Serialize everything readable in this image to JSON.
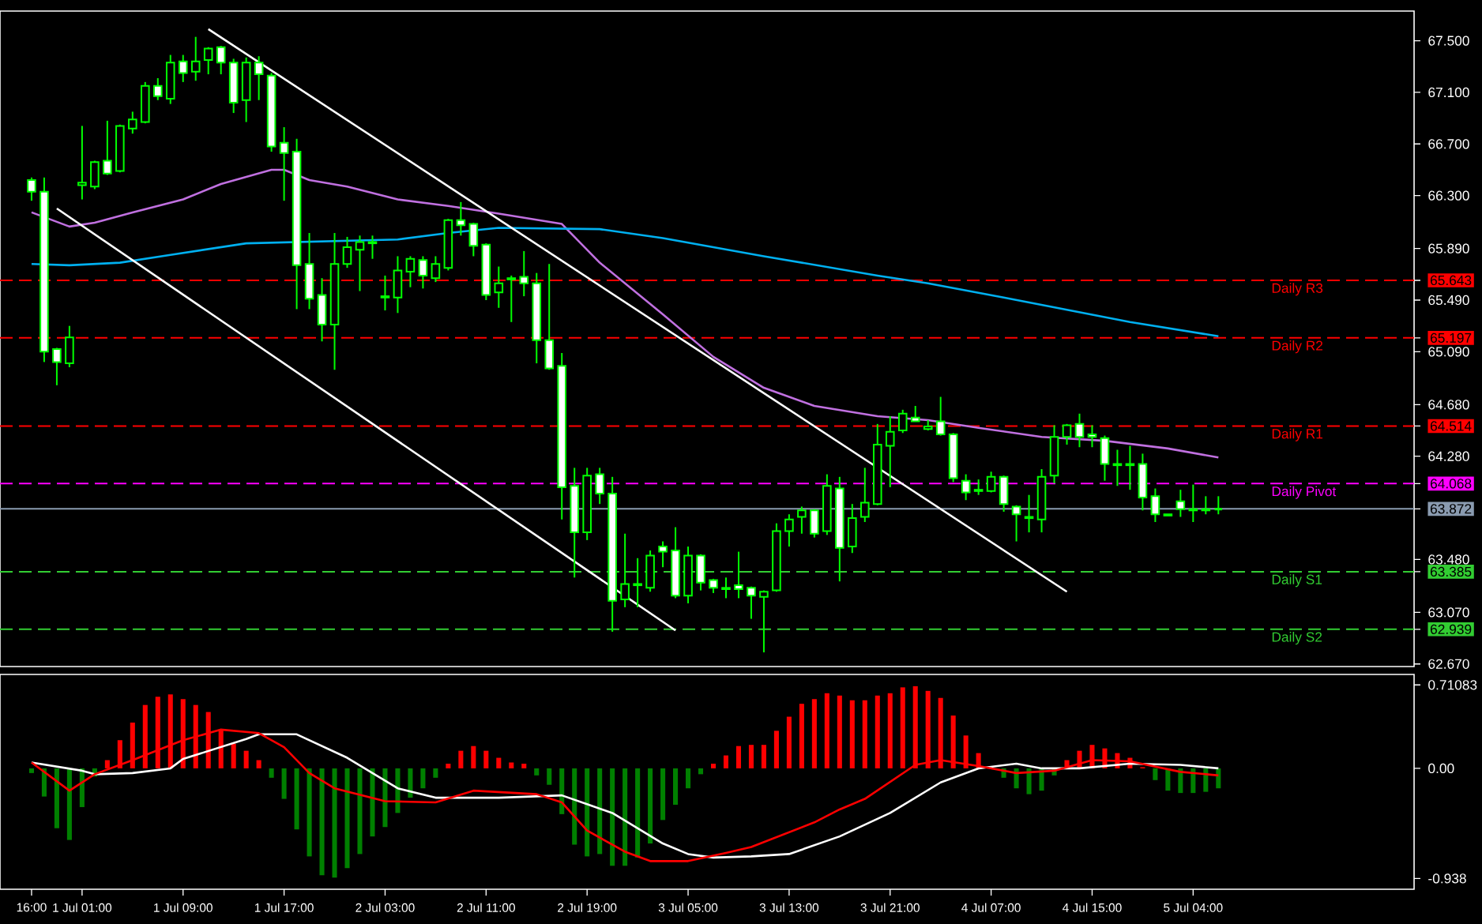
{
  "chart_data": [
    {
      "type": "candlestick",
      "color": "#00ff00",
      "categories": [
        null,
        null,
        null,
        null,
        null,
        null,
        null,
        null,
        null,
        null,
        null,
        null,
        null,
        null,
        null,
        null,
        null,
        null,
        null,
        null,
        null,
        null,
        null,
        null,
        null,
        null,
        null,
        null,
        null,
        null,
        null,
        null,
        null,
        null,
        null,
        null,
        null,
        null,
        null,
        null,
        null,
        null,
        null,
        null,
        null,
        null,
        null,
        null,
        null,
        null,
        null,
        null,
        null,
        null,
        null,
        null,
        null,
        null,
        null,
        null,
        null,
        null,
        null,
        null,
        null,
        null,
        null,
        null,
        null,
        null,
        null,
        null,
        null,
        null,
        null,
        null,
        null,
        null,
        null,
        null,
        null,
        null,
        null,
        null,
        null,
        null,
        null,
        null,
        null,
        null,
        null,
        null,
        null,
        null,
        null,
        null,
        null,
        null,
        null,
        null,
        null,
        null,
        null,
        null,
        null,
        null,
        null,
        null,
        null,
        null,
        null,
        null
      ],
      "ohlc": [
        null,
        null,
        [
          66.42,
          66.44,
          66.26,
          66.33
        ],
        [
          66.33,
          66.44,
          65.01,
          65.09
        ],
        [
          65.11,
          65.12,
          64.83,
          65.01
        ],
        [
          65.0,
          65.29,
          64.97,
          65.2
        ],
        [
          66.38,
          66.84,
          66.27,
          66.4
        ],
        [
          66.37,
          66.57,
          66.35,
          66.56
        ],
        [
          66.57,
          66.88,
          66.46,
          66.47
        ],
        [
          66.49,
          66.85,
          66.48,
          66.84
        ],
        [
          66.82,
          66.95,
          66.78,
          66.89
        ],
        [
          66.87,
          67.18,
          66.86,
          67.15
        ],
        [
          67.15,
          67.21,
          67.04,
          67.07
        ],
        [
          67.05,
          67.39,
          67.01,
          67.33
        ],
        [
          67.34,
          67.39,
          67.18,
          67.25
        ],
        [
          67.26,
          67.53,
          67.19,
          67.34
        ],
        [
          67.35,
          67.45,
          67.24,
          67.44
        ],
        [
          67.45,
          67.46,
          67.24,
          67.33
        ],
        [
          67.33,
          67.36,
          66.94,
          67.02
        ],
        [
          67.04,
          67.37,
          66.87,
          67.33
        ],
        [
          67.33,
          67.38,
          67.04,
          67.24
        ],
        [
          67.23,
          67.25,
          66.64,
          66.68
        ],
        [
          66.71,
          66.83,
          66.26,
          66.63
        ],
        [
          66.64,
          66.74,
          65.42,
          65.76
        ],
        [
          65.77,
          66.01,
          65.42,
          65.5
        ],
        [
          65.53,
          65.66,
          65.17,
          65.3
        ],
        [
          65.3,
          66.01,
          64.95,
          65.77
        ],
        [
          65.77,
          65.98,
          65.74,
          65.9
        ],
        [
          65.88,
          65.99,
          65.56,
          65.94
        ],
        [
          65.94,
          65.99,
          65.81,
          65.93
        ],
        [
          65.52,
          65.68,
          65.41,
          65.51
        ],
        [
          65.51,
          65.83,
          65.39,
          65.72
        ],
        [
          65.71,
          65.83,
          65.59,
          65.81
        ],
        [
          65.8,
          65.83,
          65.58,
          65.68
        ],
        [
          65.66,
          65.83,
          65.63,
          65.77
        ],
        [
          65.74,
          66.12,
          65.72,
          66.11
        ],
        [
          66.11,
          66.25,
          65.99,
          66.07
        ],
        [
          66.08,
          66.09,
          65.83,
          65.91
        ],
        [
          65.92,
          65.93,
          65.49,
          65.53
        ],
        [
          65.55,
          65.75,
          65.43,
          65.62
        ],
        [
          65.66,
          65.68,
          65.32,
          65.65
        ],
        [
          65.67,
          65.87,
          65.52,
          65.62
        ],
        [
          65.62,
          65.7,
          65.0,
          65.18
        ],
        [
          65.18,
          65.77,
          64.95,
          64.96
        ],
        [
          64.98,
          65.08,
          63.79,
          64.04
        ],
        [
          64.05,
          64.19,
          63.34,
          63.69
        ],
        [
          63.69,
          64.19,
          63.63,
          64.13
        ],
        [
          64.14,
          64.19,
          63.91,
          63.99
        ],
        [
          63.99,
          64.12,
          62.92,
          63.16
        ],
        [
          63.17,
          63.68,
          63.11,
          63.29
        ],
        [
          63.29,
          63.49,
          63.11,
          63.28
        ],
        [
          63.26,
          63.55,
          63.23,
          63.51
        ],
        [
          63.58,
          63.62,
          63.42,
          63.54
        ],
        [
          63.55,
          63.73,
          63.18,
          63.2
        ],
        [
          63.2,
          63.58,
          63.14,
          63.51
        ],
        [
          63.51,
          63.52,
          63.24,
          63.3
        ],
        [
          63.32,
          63.33,
          63.22,
          63.26
        ],
        [
          63.26,
          63.34,
          63.18,
          63.25
        ],
        [
          63.28,
          63.54,
          63.18,
          63.25
        ],
        [
          63.26,
          63.27,
          63.02,
          63.2
        ],
        [
          63.19,
          63.24,
          62.76,
          63.23
        ],
        [
          63.24,
          63.76,
          63.23,
          63.7
        ],
        [
          63.7,
          63.83,
          63.58,
          63.79
        ],
        [
          63.81,
          63.89,
          63.68,
          63.86
        ],
        [
          63.86,
          63.87,
          63.65,
          63.68
        ],
        [
          63.7,
          64.14,
          63.67,
          64.05
        ],
        [
          64.03,
          64.12,
          63.31,
          63.57
        ],
        [
          63.58,
          63.91,
          63.53,
          63.8
        ],
        [
          63.81,
          64.19,
          63.77,
          63.92
        ],
        [
          63.91,
          64.53,
          63.9,
          64.37
        ],
        [
          64.36,
          64.59,
          64.04,
          64.47
        ],
        [
          64.48,
          64.64,
          64.46,
          64.61
        ],
        [
          64.58,
          64.67,
          64.55,
          64.55
        ],
        [
          64.49,
          64.56,
          64.48,
          64.51
        ],
        [
          64.55,
          64.74,
          64.44,
          64.45
        ],
        [
          64.45,
          64.46,
          64.08,
          64.11
        ],
        [
          64.09,
          64.14,
          63.94,
          64.0
        ],
        [
          64.02,
          64.1,
          63.98,
          64.01
        ],
        [
          64.01,
          64.16,
          64.0,
          64.12
        ],
        [
          64.12,
          64.13,
          63.85,
          63.91
        ],
        [
          63.89,
          63.9,
          63.62,
          63.83
        ],
        [
          63.81,
          63.98,
          63.69,
          63.8
        ],
        [
          63.79,
          64.18,
          63.69,
          64.12
        ],
        [
          64.13,
          64.52,
          64.07,
          64.43
        ],
        [
          64.43,
          64.53,
          64.37,
          64.52
        ],
        [
          64.53,
          64.61,
          64.35,
          64.43
        ],
        [
          64.45,
          64.52,
          64.35,
          64.43
        ],
        [
          64.42,
          64.44,
          64.09,
          64.22
        ],
        [
          64.22,
          64.33,
          64.05,
          64.21
        ],
        [
          64.22,
          64.36,
          64.02,
          64.21
        ],
        [
          64.22,
          64.3,
          63.86,
          63.96
        ],
        [
          63.97,
          64.03,
          63.77,
          63.83
        ],
        [
          63.83,
          63.83,
          63.82,
          63.82
        ],
        [
          63.93,
          64.02,
          63.81,
          63.87
        ],
        [
          63.87,
          64.06,
          63.77,
          63.86
        ],
        [
          63.87,
          63.97,
          63.83,
          63.86
        ],
        [
          63.87,
          63.97,
          63.83,
          63.87
        ],
        null,
        null,
        null,
        null,
        null,
        null,
        null,
        null,
        null,
        null,
        null,
        null,
        null,
        null,
        null
      ],
      "series": [
        {
          "type": "line",
          "color": "#c070e0",
          "values": [
            null,
            null,
            66.17,
            null,
            null,
            66.06,
            null,
            66.09,
            null,
            null,
            66.17,
            null,
            null,
            null,
            66.27,
            null,
            null,
            66.39,
            null,
            null,
            null,
            66.5,
            66.5,
            null,
            66.42,
            null,
            null,
            66.37,
            null,
            null,
            null,
            66.27,
            null,
            null,
            null,
            66.22,
            null,
            null,
            null,
            66.16,
            null,
            null,
            null,
            null,
            66.08,
            null,
            null,
            65.78,
            null,
            null,
            null,
            null,
            65.38,
            null,
            null,
            null,
            65.05,
            null,
            null,
            null,
            64.81,
            null,
            null,
            null,
            64.67,
            null,
            null,
            null,
            null,
            64.59,
            null,
            null,
            null,
            64.56,
            null,
            null,
            null,
            64.5,
            null,
            null,
            null,
            null,
            64.43,
            null,
            null,
            null,
            null,
            64.4,
            null,
            null,
            null,
            null,
            64.34,
            null,
            null,
            null,
            64.27,
            null,
            null,
            null,
            null,
            null,
            null,
            null,
            null,
            null,
            null,
            null,
            null,
            null,
            null,
            null
          ]
        },
        {
          "type": "line",
          "color": "#00b0f0",
          "values": [
            null,
            null,
            65.77,
            null,
            null,
            65.76,
            null,
            null,
            null,
            65.78,
            null,
            null,
            null,
            65.84,
            null,
            null,
            null,
            null,
            null,
            65.93,
            null,
            null,
            null,
            null,
            null,
            null,
            null,
            null,
            null,
            null,
            null,
            65.96,
            null,
            null,
            null,
            66.01,
            null,
            null,
            null,
            66.05,
            null,
            null,
            null,
            null,
            null,
            null,
            null,
            66.04,
            null,
            null,
            null,
            null,
            65.97,
            null,
            null,
            null,
            null,
            null,
            null,
            null,
            65.83,
            null,
            null,
            null,
            null,
            null,
            null,
            null,
            null,
            65.68,
            null,
            null,
            null,
            65.62,
            null,
            null,
            null,
            null,
            null,
            65.51,
            null,
            null,
            null,
            null,
            null,
            null,
            null,
            null,
            null,
            65.32,
            null,
            null,
            null,
            null,
            null,
            null,
            65.21,
            null,
            null,
            null,
            null,
            null,
            null,
            null,
            null,
            null,
            null,
            null,
            null,
            null,
            null,
            null
          ]
        },
        {
          "type": "line",
          "color": "#ffffff",
          "values": [
            null,
            null,
            null,
            null,
            null,
            null,
            null,
            null,
            null,
            null,
            null,
            null,
            null,
            null,
            null,
            null,
            67.59,
            null,
            null,
            null,
            null,
            null,
            null,
            null,
            null,
            null,
            null,
            null,
            null,
            null,
            null,
            null,
            null,
            null,
            null,
            null,
            null,
            null,
            null,
            null,
            null,
            null,
            null,
            null,
            null,
            null,
            null,
            null,
            null,
            null,
            null,
            null,
            null,
            null,
            null,
            null,
            null,
            null,
            null,
            null,
            null,
            null,
            null,
            null,
            null,
            null,
            null,
            null,
            null,
            null,
            null,
            null,
            null,
            null,
            null,
            null,
            null,
            null,
            null,
            null,
            null,
            null,
            null,
            null,
            63.23,
            null,
            null,
            null,
            null,
            null,
            null,
            null,
            null,
            null,
            null,
            null,
            null,
            null,
            null,
            null,
            null,
            null,
            null,
            null,
            null,
            null,
            null,
            null,
            null,
            null,
            null,
            null
          ]
        },
        {
          "type": "line",
          "color": "#ffffff",
          "values": [
            null,
            null,
            null,
            null,
            66.2,
            null,
            null,
            null,
            null,
            null,
            null,
            null,
            null,
            null,
            null,
            null,
            null,
            null,
            null,
            null,
            null,
            null,
            null,
            null,
            null,
            null,
            null,
            null,
            null,
            null,
            null,
            null,
            null,
            null,
            null,
            null,
            null,
            null,
            null,
            null,
            null,
            null,
            null,
            null,
            null,
            null,
            null,
            null,
            null,
            null,
            null,
            null,
            null,
            62.93,
            null,
            null,
            null,
            null,
            null,
            null,
            null,
            null,
            null,
            null,
            null,
            null,
            null,
            null,
            null,
            null,
            null,
            null,
            null,
            null,
            null,
            null,
            null,
            null,
            null,
            null,
            null,
            null,
            null,
            null,
            null,
            null,
            null,
            null,
            null,
            null,
            null,
            null,
            null,
            null,
            null,
            null,
            null,
            null,
            null,
            null,
            null,
            null,
            null,
            null,
            null,
            null,
            null,
            null,
            null,
            null,
            null,
            null
          ]
        }
      ],
      "ylim": [
        62.65,
        67.73
      ],
      "yticks": [
        {
          "value": 62.67,
          "label": "62.670"
        },
        {
          "value": 63.07,
          "label": "63.070"
        },
        {
          "value": 63.48,
          "label": "63.480"
        },
        {
          "value": 64.28,
          "label": "64.280"
        },
        {
          "value": 64.68,
          "label": "64.680"
        },
        {
          "value": 65.09,
          "label": "65.090"
        },
        {
          "value": 65.49,
          "label": "65.490"
        },
        {
          "value": 65.89,
          "label": "65.890"
        },
        {
          "value": 66.3,
          "label": "66.300"
        },
        {
          "value": 66.7,
          "label": "66.700"
        },
        {
          "value": 67.1,
          "label": "67.100"
        },
        {
          "value": 67.5,
          "label": "67.500"
        },
        {
          "value": 65.643,
          "label": "65.643"
        },
        {
          "value": 65.197,
          "label": "65.197"
        },
        {
          "value": 64.514,
          "label": "64.514"
        },
        {
          "value": 64.068,
          "label": "64.068"
        },
        {
          "value": 63.872,
          "label": "63.872"
        },
        {
          "value": 63.385,
          "label": "63.385"
        },
        {
          "value": 62.939,
          "label": "62.939"
        }
      ],
      "tick_labels": "y",
      "ref_lines": [
        {
          "axis": "y",
          "value": 65.643,
          "label": "Daily R3",
          "color": "#ff0000",
          "line_style": "dashed"
        },
        {
          "axis": "y",
          "value": 65.197,
          "label": "Daily R2",
          "color": "#ff0000",
          "line_style": "dashed"
        },
        {
          "axis": "y",
          "value": 64.514,
          "label": "Daily R1",
          "color": "#ff0000",
          "line_style": "dashed"
        },
        {
          "axis": "y",
          "value": 64.068,
          "label": "Daily Pivot",
          "color": "#ff00ff",
          "line_style": "dashed"
        },
        {
          "axis": "y",
          "value": 63.872,
          "label": null,
          "color": "#8a9bb0",
          "line_style": "solid"
        },
        {
          "axis": "y",
          "value": 63.385,
          "label": "Daily S1",
          "color": "#32cd32",
          "line_style": "dashed"
        },
        {
          "axis": "y",
          "value": 62.939,
          "label": "Daily S2",
          "color": "#32cd32",
          "line_style": "dashed"
        }
      ]
    },
    {
      "type": "bar",
      "categories": [
        null,
        null,
        "16:00",
        null,
        null,
        null,
        "1 Jul 01:00",
        null,
        null,
        null,
        null,
        null,
        null,
        null,
        "1 Jul 09:00",
        null,
        null,
        null,
        null,
        null,
        null,
        null,
        "1 Jul 17:00",
        null,
        null,
        null,
        null,
        null,
        null,
        null,
        "2 Jul 03:00",
        null,
        null,
        null,
        null,
        null,
        null,
        null,
        "2 Jul 11:00",
        null,
        null,
        null,
        null,
        null,
        null,
        null,
        "2 Jul 19:00",
        null,
        null,
        null,
        null,
        null,
        null,
        null,
        "3 Jul 05:00",
        null,
        null,
        null,
        null,
        null,
        null,
        null,
        "3 Jul 13:00",
        null,
        null,
        null,
        null,
        null,
        null,
        null,
        "3 Jul 21:00",
        null,
        null,
        null,
        null,
        null,
        null,
        null,
        "4 Jul 07:00",
        null,
        null,
        null,
        null,
        null,
        null,
        null,
        "4 Jul 15:00",
        null,
        null,
        null,
        null,
        null,
        null,
        null,
        "5 Jul 04:00",
        null,
        null,
        null,
        null,
        null,
        null,
        null,
        null,
        null,
        null,
        null,
        null,
        null,
        null,
        null,
        null,
        null
      ],
      "series": [
        {
          "values": [
            null,
            null,
            -0.04,
            -0.24,
            -0.51,
            -0.61,
            -0.33,
            -0.07,
            0.07,
            0.24,
            0.39,
            0.54,
            0.61,
            0.63,
            0.59,
            0.54,
            0.48,
            0.33,
            0.21,
            0.15,
            0.07,
            -0.08,
            -0.26,
            -0.52,
            -0.75,
            -0.91,
            -0.93,
            -0.85,
            -0.73,
            -0.58,
            -0.5,
            -0.38,
            -0.25,
            -0.17,
            -0.08,
            0.04,
            0.15,
            0.19,
            0.15,
            0.09,
            0.05,
            0.04,
            -0.06,
            -0.14,
            -0.39,
            -0.65,
            -0.75,
            -0.73,
            -0.83,
            -0.83,
            -0.76,
            -0.64,
            -0.44,
            -0.31,
            -0.17,
            -0.05,
            0.04,
            0.11,
            0.19,
            0.2,
            0.2,
            0.32,
            0.44,
            0.55,
            0.59,
            0.64,
            0.62,
            0.58,
            0.58,
            0.62,
            0.64,
            0.69,
            0.7,
            0.66,
            0.6,
            0.45,
            0.28,
            0.13,
            null,
            -0.08,
            -0.17,
            -0.22,
            -0.19,
            -0.06,
            0.07,
            0.15,
            0.2,
            0.17,
            0.13,
            0.09,
            0.01,
            -0.1,
            -0.19,
            -0.21,
            -0.21,
            -0.2,
            -0.17,
            null,
            null,
            null,
            null,
            null,
            null,
            null,
            null,
            null,
            null,
            null,
            null,
            null,
            null,
            null
          ],
          "colors": [
            null,
            null,
            "#008000",
            "#008000",
            "#008000",
            "#008000",
            "#008000",
            "#008000",
            "#ff0000",
            "#ff0000",
            "#ff0000",
            "#ff0000",
            "#ff0000",
            "#ff0000",
            "#ff0000",
            "#ff0000",
            "#ff0000",
            "#ff0000",
            "#ff0000",
            "#ff0000",
            "#ff0000",
            "#008000",
            "#008000",
            "#008000",
            "#008000",
            "#008000",
            "#008000",
            "#008000",
            "#008000",
            "#008000",
            "#008000",
            "#008000",
            "#008000",
            "#008000",
            "#008000",
            "#ff0000",
            "#ff0000",
            "#ff0000",
            "#ff0000",
            "#ff0000",
            "#ff0000",
            "#ff0000",
            "#008000",
            "#008000",
            "#008000",
            "#008000",
            "#008000",
            "#008000",
            "#008000",
            "#008000",
            "#008000",
            "#008000",
            "#008000",
            "#008000",
            "#008000",
            "#008000",
            "#ff0000",
            "#ff0000",
            "#ff0000",
            "#ff0000",
            "#ff0000",
            "#ff0000",
            "#ff0000",
            "#ff0000",
            "#ff0000",
            "#ff0000",
            "#ff0000",
            "#ff0000",
            "#ff0000",
            "#ff0000",
            "#ff0000",
            "#ff0000",
            "#ff0000",
            "#ff0000",
            "#ff0000",
            "#ff0000",
            "#ff0000",
            "#ff0000",
            "#008000",
            "#008000",
            "#008000",
            "#008000",
            "#008000",
            "#008000",
            "#ff0000",
            "#ff0000",
            "#ff0000",
            "#ff0000",
            "#ff0000",
            "#ff0000",
            "#ff0000",
            "#008000",
            "#008000",
            "#008000",
            "#008000",
            "#008000",
            "#008000",
            null,
            null,
            null,
            null,
            null,
            null,
            null,
            null,
            null,
            null,
            null,
            null,
            null,
            null,
            null
          ]
        },
        {
          "type": "line",
          "color": "#ffffff",
          "values": [
            null,
            null,
            0.05,
            null,
            null,
            null,
            -0.02,
            -0.05,
            null,
            null,
            -0.04,
            null,
            null,
            0.0,
            0.08,
            null,
            null,
            null,
            null,
            0.25,
            0.29,
            null,
            null,
            0.29,
            null,
            null,
            null,
            0.09,
            null,
            null,
            null,
            -0.17,
            null,
            null,
            -0.25,
            null,
            null,
            null,
            null,
            -0.25,
            null,
            null,
            null,
            null,
            -0.23,
            null,
            null,
            null,
            -0.38,
            null,
            null,
            null,
            -0.64,
            null,
            -0.73,
            null,
            -0.76,
            null,
            null,
            -0.75,
            null,
            null,
            -0.73,
            null,
            null,
            null,
            -0.58,
            null,
            null,
            null,
            -0.38,
            null,
            null,
            null,
            -0.12,
            null,
            null,
            0.0,
            null,
            null,
            0.04,
            null,
            0.0,
            null,
            null,
            0.0,
            null,
            null,
            null,
            0.04,
            null,
            null,
            null,
            0.03,
            null,
            null,
            0.0,
            null,
            null,
            null,
            null,
            null,
            null,
            null,
            null,
            null,
            null,
            null,
            null,
            null,
            null,
            null
          ]
        },
        {
          "type": "line",
          "color": "#ff0000",
          "values": [
            null,
            null,
            0.05,
            null,
            null,
            -0.19,
            null,
            -0.05,
            null,
            null,
            0.07,
            null,
            null,
            null,
            0.24,
            null,
            null,
            0.33,
            null,
            null,
            0.3,
            null,
            0.18,
            null,
            -0.04,
            null,
            -0.17,
            null,
            null,
            null,
            -0.28,
            null,
            null,
            null,
            -0.29,
            null,
            null,
            -0.19,
            null,
            null,
            null,
            null,
            -0.22,
            null,
            -0.29,
            null,
            -0.53,
            null,
            null,
            -0.71,
            null,
            -0.79,
            null,
            null,
            -0.79,
            null,
            null,
            -0.72,
            null,
            -0.67,
            null,
            null,
            null,
            null,
            -0.46,
            null,
            -0.35,
            null,
            -0.26,
            null,
            null,
            null,
            0.03,
            null,
            0.07,
            null,
            null,
            0.02,
            null,
            null,
            -0.04,
            null,
            null,
            -0.02,
            null,
            null,
            0.07,
            null,
            null,
            0.06,
            null,
            null,
            null,
            -0.03,
            null,
            null,
            -0.06,
            null,
            null,
            null,
            null,
            null,
            null,
            null,
            null,
            null,
            null,
            null,
            null,
            null,
            null,
            null
          ]
        }
      ],
      "ylim": [
        -1.03,
        0.8
      ],
      "yticks": [
        {
          "value": -0.938,
          "label": "-0.938"
        },
        {
          "value": 0,
          "label": "0.00"
        },
        {
          "value": 0.71083,
          "label": "0.71083"
        }
      ]
    }
  ]
}
